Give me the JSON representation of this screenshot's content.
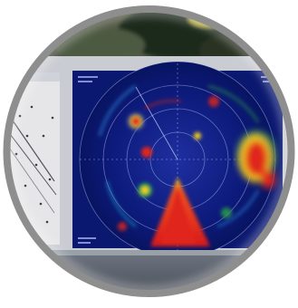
{
  "photo": {
    "subject": "sonar-display-monitor",
    "frame_color": "#8e8e8e",
    "scope_background": "#0a1870",
    "echo_colors": [
      "#e0261c",
      "#f7d21c",
      "#2aa14b",
      "#1e5ad0"
    ]
  }
}
